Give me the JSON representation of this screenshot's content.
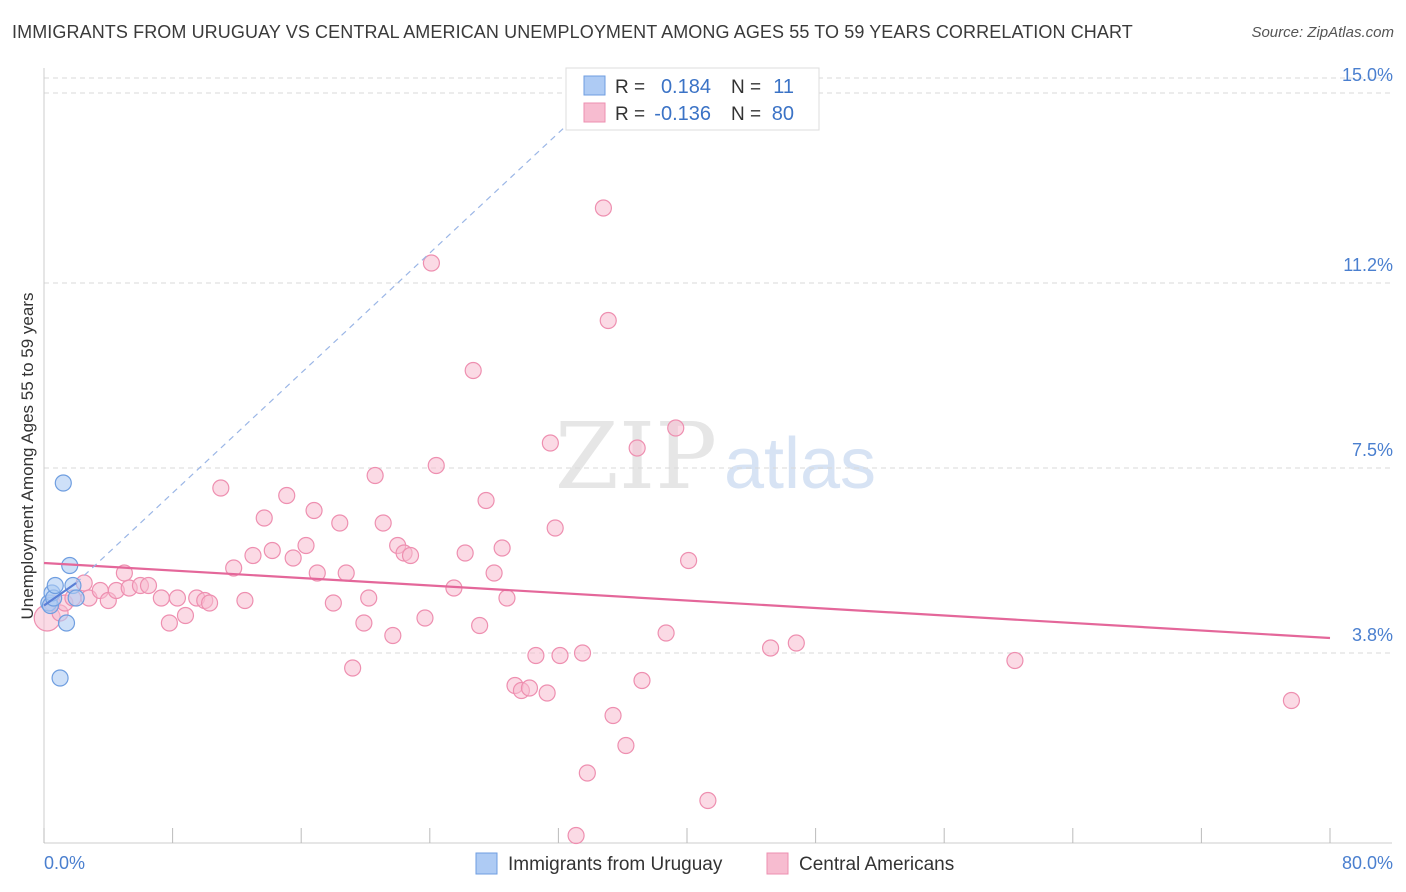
{
  "title": "IMMIGRANTS FROM URUGUAY VS CENTRAL AMERICAN UNEMPLOYMENT AMONG AGES 55 TO 59 YEARS CORRELATION CHART",
  "source": "Source: ZipAtlas.com",
  "watermark": {
    "zip": "ZIP",
    "atlas": "atlas"
  },
  "legend_stats": {
    "rows": [
      {
        "r_label": "R =",
        "r_value": "0.184",
        "n_label": "N =",
        "n_value": "11"
      },
      {
        "r_label": "R =",
        "r_value": "-0.136",
        "n_label": "N =",
        "n_value": "80"
      }
    ]
  },
  "bottom_legend": [
    {
      "label": "Immigrants from Uruguay"
    },
    {
      "label": "Central Americans"
    }
  ],
  "colors": {
    "uruguay_fill": "#aecbf4",
    "uruguay_stroke": "#6f9ee0",
    "uruguay_line": "#5a7fd6",
    "central_fill": "#f7bcd0",
    "central_stroke": "#ee8fb0",
    "central_line": "#e4679a",
    "tick_label": "#4a7fcf",
    "grid": "#d9d9d9",
    "text": "#333333"
  },
  "chart_data": {
    "type": "scatter",
    "xlabel": "",
    "ylabel": "Unemployment Among Ages 55 to 59 years",
    "xlim": [
      0,
      80
    ],
    "ylim": [
      0,
      15.5
    ],
    "x_tick_labels": [
      {
        "value": 0,
        "label": "0.0%"
      },
      {
        "value": 80,
        "label": "80.0%"
      }
    ],
    "y_ticks": [
      {
        "value": 3.8,
        "label": "3.8%"
      },
      {
        "value": 7.5,
        "label": "7.5%"
      },
      {
        "value": 11.2,
        "label": "11.2%"
      },
      {
        "value": 15.0,
        "label": "15.0%"
      }
    ],
    "grid": "horizontal dashed",
    "series": [
      {
        "name": "Immigrants from Uruguay",
        "points": [
          [
            0.3,
            4.8
          ],
          [
            0.4,
            4.75
          ],
          [
            0.5,
            5.0
          ],
          [
            0.6,
            4.9
          ],
          [
            0.7,
            5.15
          ],
          [
            1.2,
            7.2
          ],
          [
            1.4,
            4.4
          ],
          [
            1.6,
            5.55
          ],
          [
            1.8,
            5.15
          ],
          [
            2.0,
            4.9
          ],
          [
            1.0,
            3.3
          ]
        ],
        "trend": {
          "solid": [
            [
              0.0,
              4.75
            ],
            [
              2.0,
              5.2
            ]
          ],
          "dashed": [
            [
              2.0,
              5.2
            ],
            [
              33.0,
              14.5
            ]
          ]
        }
      },
      {
        "name": "Central Americans",
        "points": [
          [
            0.2,
            4.5
          ],
          [
            0.5,
            4.8
          ],
          [
            1.0,
            4.6
          ],
          [
            1.3,
            4.8
          ],
          [
            1.8,
            4.9
          ],
          [
            2.5,
            5.2
          ],
          [
            2.8,
            4.9
          ],
          [
            3.5,
            5.05
          ],
          [
            4.0,
            4.85
          ],
          [
            4.5,
            5.05
          ],
          [
            5.0,
            5.4
          ],
          [
            5.3,
            5.1
          ],
          [
            6.0,
            5.15
          ],
          [
            6.5,
            5.15
          ],
          [
            7.3,
            4.9
          ],
          [
            7.8,
            4.4
          ],
          [
            8.3,
            4.9
          ],
          [
            8.8,
            4.55
          ],
          [
            9.5,
            4.9
          ],
          [
            10.0,
            4.85
          ],
          [
            10.3,
            4.8
          ],
          [
            11.0,
            7.1
          ],
          [
            11.8,
            5.5
          ],
          [
            12.5,
            4.85
          ],
          [
            13.0,
            5.75
          ],
          [
            13.7,
            6.5
          ],
          [
            14.2,
            5.85
          ],
          [
            15.1,
            6.95
          ],
          [
            15.5,
            5.7
          ],
          [
            16.3,
            5.95
          ],
          [
            16.8,
            6.65
          ],
          [
            17.0,
            5.4
          ],
          [
            18.0,
            4.8
          ],
          [
            18.4,
            6.4
          ],
          [
            18.8,
            5.4
          ],
          [
            19.2,
            3.5
          ],
          [
            19.9,
            4.4
          ],
          [
            20.2,
            4.9
          ],
          [
            20.6,
            7.35
          ],
          [
            21.1,
            6.4
          ],
          [
            21.7,
            4.15
          ],
          [
            22.0,
            5.95
          ],
          [
            22.4,
            5.8
          ],
          [
            22.8,
            5.75
          ],
          [
            23.7,
            4.5
          ],
          [
            24.1,
            11.6
          ],
          [
            24.4,
            7.55
          ],
          [
            25.5,
            5.1
          ],
          [
            26.2,
            5.8
          ],
          [
            26.7,
            9.45
          ],
          [
            27.1,
            4.35
          ],
          [
            27.5,
            6.85
          ],
          [
            28.0,
            5.4
          ],
          [
            28.5,
            5.9
          ],
          [
            28.8,
            4.9
          ],
          [
            29.3,
            3.15
          ],
          [
            29.7,
            3.05
          ],
          [
            30.2,
            3.1
          ],
          [
            30.6,
            3.75
          ],
          [
            31.3,
            3.0
          ],
          [
            31.5,
            8.0
          ],
          [
            31.8,
            6.3
          ],
          [
            32.1,
            3.75
          ],
          [
            33.1,
            0.15
          ],
          [
            33.5,
            3.8
          ],
          [
            33.8,
            1.4
          ],
          [
            34.8,
            12.7
          ],
          [
            35.1,
            10.45
          ],
          [
            35.4,
            2.55
          ],
          [
            36.2,
            1.95
          ],
          [
            36.9,
            7.9
          ],
          [
            37.2,
            3.25
          ],
          [
            38.7,
            4.2
          ],
          [
            39.3,
            8.3
          ],
          [
            40.1,
            5.65
          ],
          [
            41.3,
            0.85
          ],
          [
            45.2,
            3.9
          ],
          [
            46.8,
            4.0
          ],
          [
            60.4,
            3.65
          ],
          [
            77.6,
            2.85
          ]
        ],
        "trend": {
          "solid": [
            [
              0.0,
              5.6
            ],
            [
              80.0,
              4.1
            ]
          ]
        }
      }
    ]
  }
}
